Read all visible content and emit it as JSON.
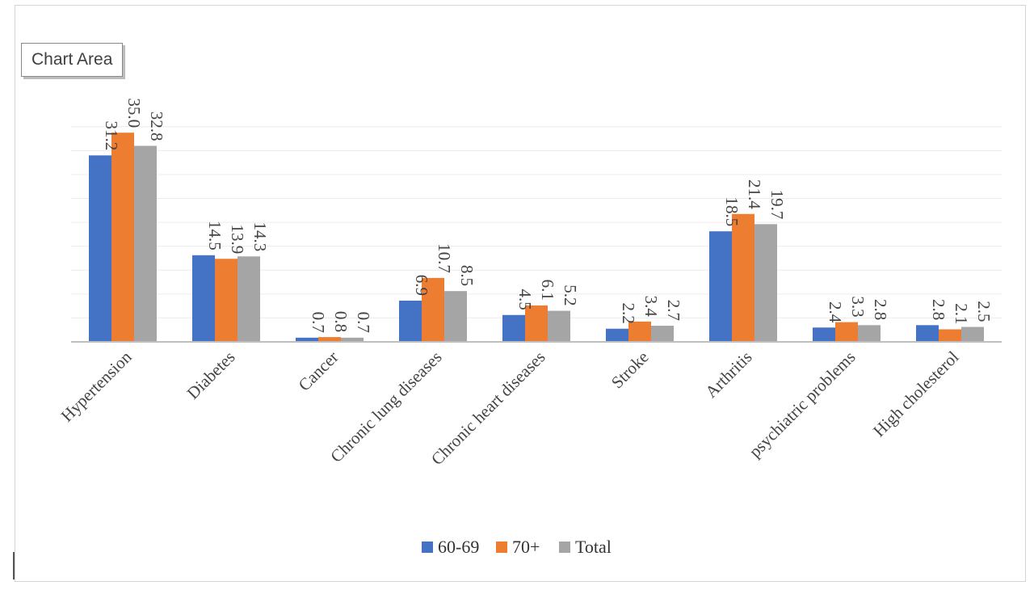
{
  "tooltip": {
    "label": "Chart Area"
  },
  "chart_data": {
    "type": "bar",
    "title": "",
    "xlabel": "",
    "ylabel": "",
    "ylim": [
      0,
      38
    ],
    "grid": true,
    "legend_position": "bottom",
    "categories": [
      "Hypertension",
      "Diabetes",
      "Cancer",
      "Chronic lung diseases",
      "Chronic heart diseases",
      "Stroke",
      "Arthritis",
      "psychiatric problems",
      "High cholesterol"
    ],
    "series": [
      {
        "name": "60-69",
        "color": "#4472C4",
        "values": [
          31.2,
          14.5,
          0.7,
          6.9,
          4.5,
          2.2,
          18.5,
          2.4,
          2.8
        ]
      },
      {
        "name": "70+",
        "color": "#ED7D31",
        "values": [
          35.0,
          13.9,
          0.8,
          10.7,
          6.1,
          3.4,
          21.4,
          3.3,
          2.1
        ]
      },
      {
        "name": "Total",
        "color": "#A5A5A5",
        "values": [
          32.8,
          14.3,
          0.7,
          8.5,
          5.2,
          2.7,
          19.7,
          2.8,
          2.5
        ]
      }
    ],
    "data_labels": [
      [
        "31.2",
        "14.5",
        "0.7",
        "6.9",
        "4.5",
        "2.2",
        "18.5",
        "2.4",
        "2.8"
      ],
      [
        "35.0",
        "13.9",
        "0.8",
        "10.7",
        "6.1",
        "3.4",
        "21.4",
        "3.3",
        "2.1"
      ],
      [
        "32.8",
        "14.3",
        "0.7",
        "8.5",
        "5.2",
        "2.7",
        "19.7",
        "2.8",
        "2.5"
      ]
    ]
  }
}
